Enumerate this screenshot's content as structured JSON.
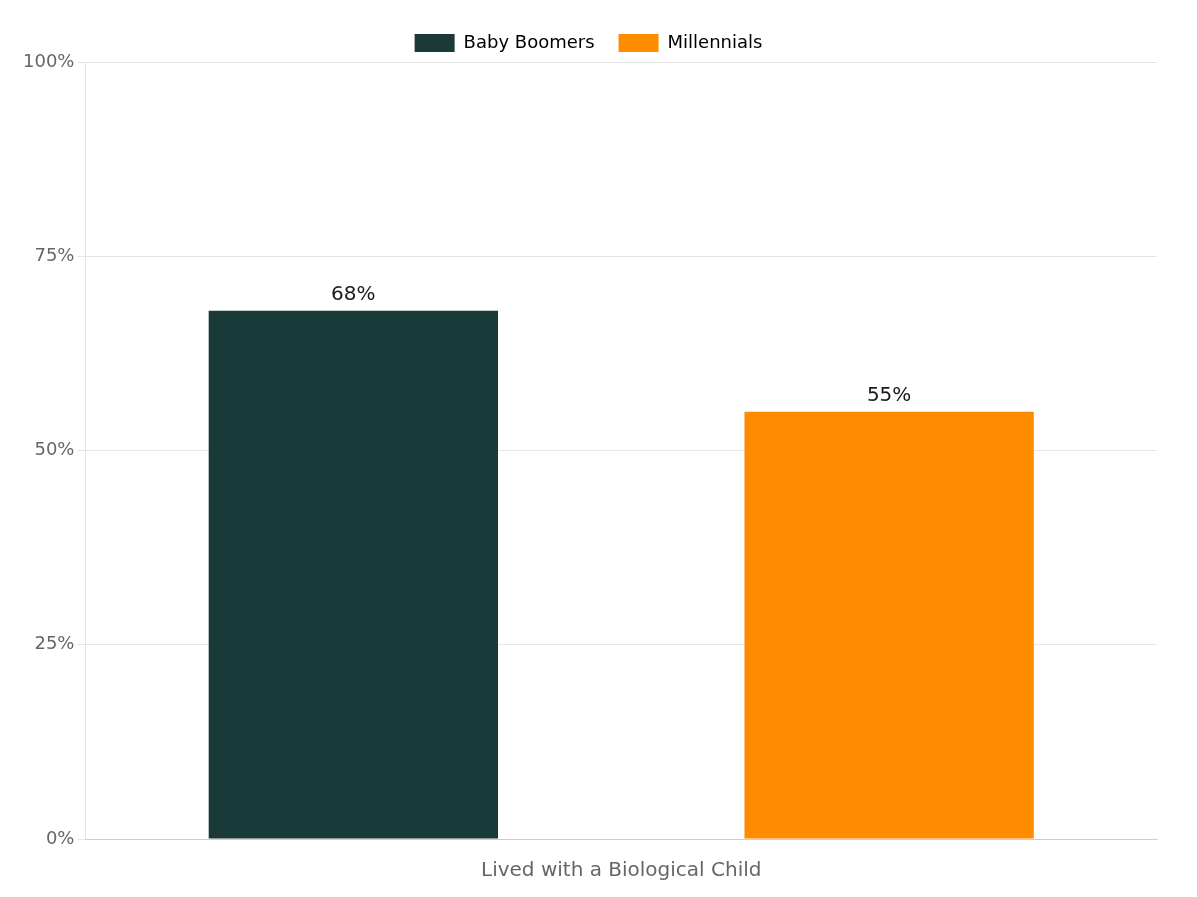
{
  "chart_data": {
    "type": "bar",
    "categories": [
      "Baby Boomers",
      "Millennials"
    ],
    "values": [
      68,
      55
    ],
    "value_labels": [
      "68%",
      "55%"
    ],
    "colors": [
      "#1a3a3a",
      "#ff8c00"
    ],
    "xlabel": "Lived with a Biological Child",
    "ylim": [
      0,
      100
    ],
    "yticks": [
      {
        "value": 0,
        "label": "0%"
      },
      {
        "value": 25,
        "label": "25%"
      },
      {
        "value": 50,
        "label": "50%"
      },
      {
        "value": 75,
        "label": "75%"
      },
      {
        "value": 100,
        "label": "100%"
      }
    ],
    "grid": true,
    "legend": "top",
    "tick_labels": "y"
  }
}
